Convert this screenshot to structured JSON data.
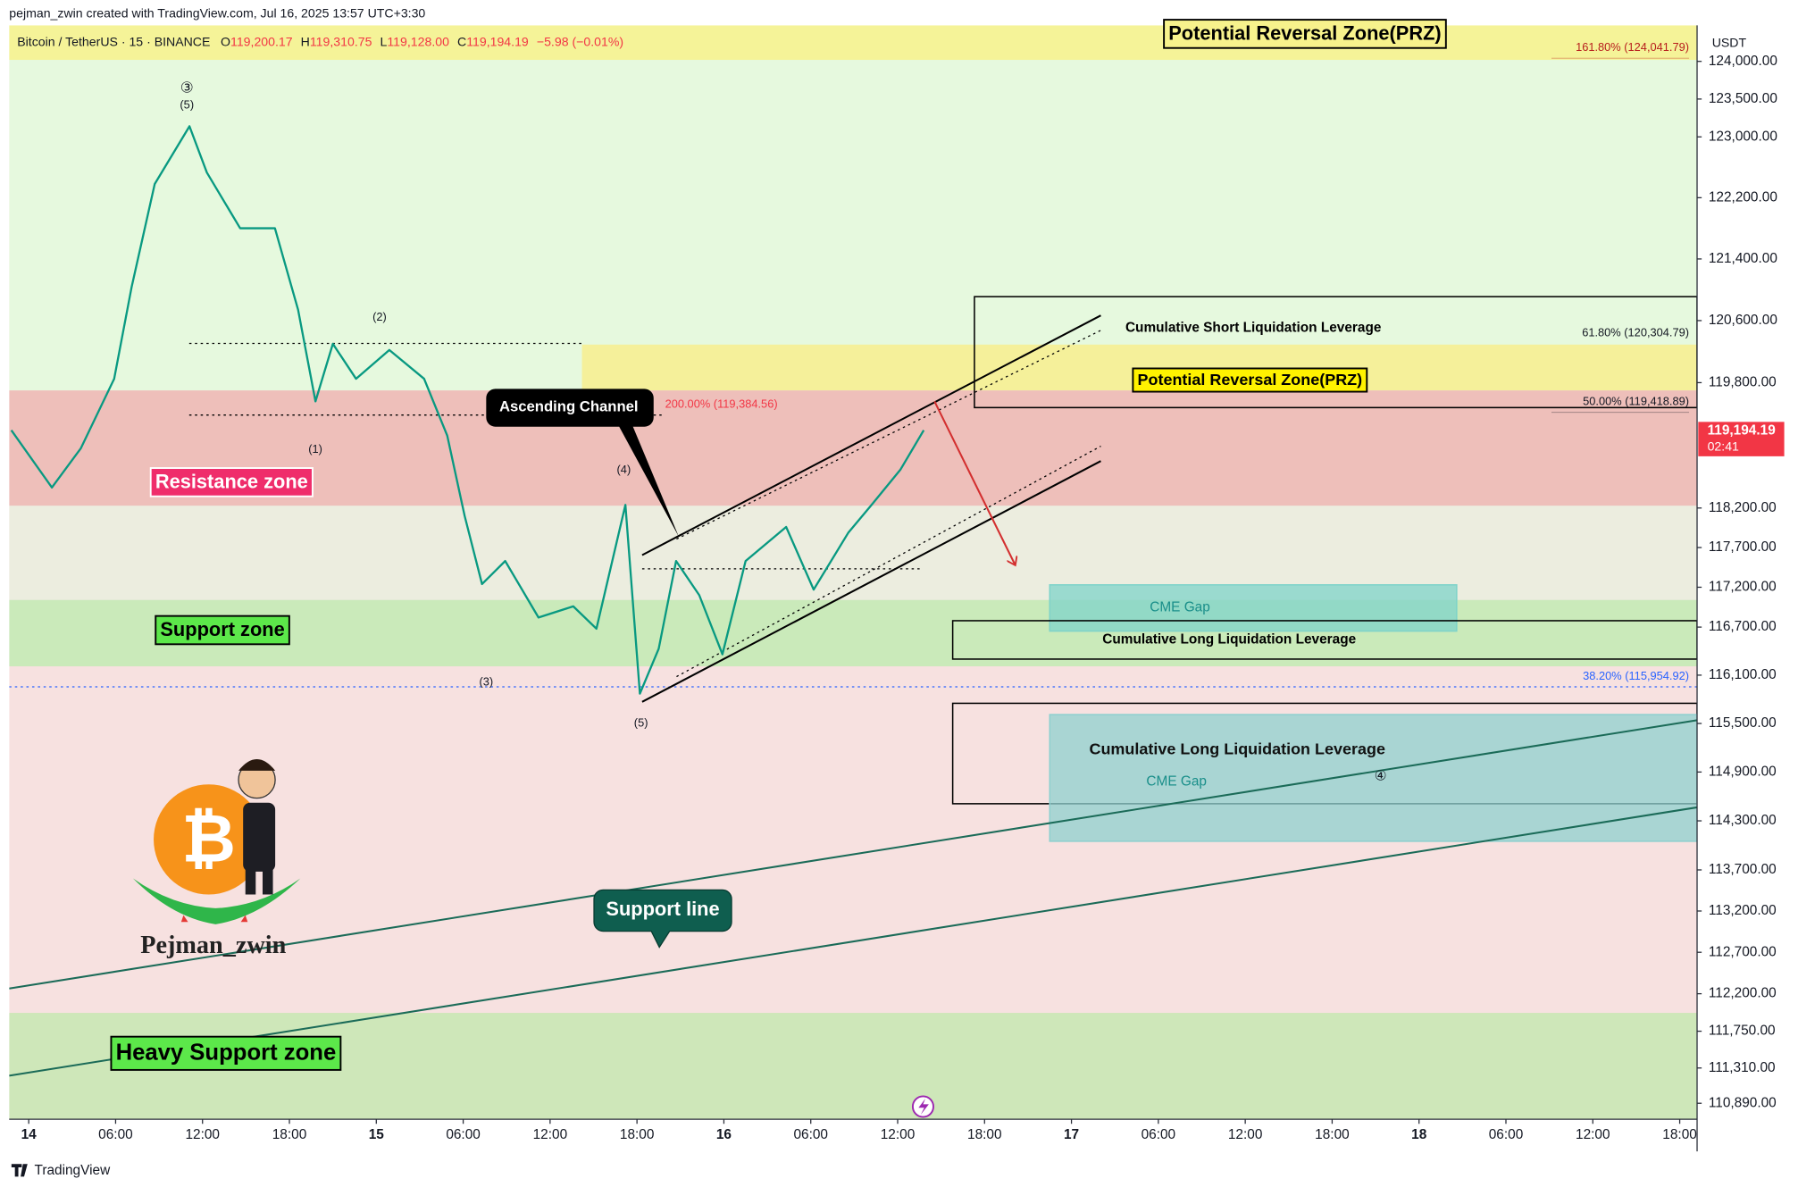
{
  "header": {
    "credit": "pejman_zwin created with TradingView.com, Jul 16, 2025 13:57 UTC+3:30"
  },
  "symbol_bar": {
    "symbol": "Bitcoin / TetherUS · 15 · BINANCE",
    "open_label": "O",
    "open": "119,200.17",
    "high_label": "H",
    "high": "119,310.75",
    "low_label": "L",
    "low": "119,128.00",
    "close_label": "C",
    "close": "119,194.19",
    "change": "−5.98 (−0.01%)"
  },
  "chart_data": {
    "type": "line",
    "x": [
      -1.2,
      1.6,
      3.6,
      5.9,
      7.1,
      8.7,
      11.1,
      12.3,
      14.6,
      17.0,
      18.6,
      19.8,
      21.0,
      22.6,
      24.9,
      27.3,
      28.9,
      30.1,
      31.3,
      32.9,
      35.2,
      37.6,
      39.2,
      41.2,
      42.2,
      43.5,
      44.7,
      46.3,
      47.9,
      49.5,
      52.3,
      54.2,
      56.6,
      58.2,
      60.2,
      61.8
    ],
    "values": [
      119190,
      118460,
      118960,
      119850,
      121030,
      122380,
      123140,
      122530,
      121800,
      121800,
      120740,
      119560,
      120300,
      119850,
      120220,
      119850,
      119120,
      118100,
      117240,
      117530,
      116820,
      116960,
      116680,
      118240,
      115870,
      116430,
      117530,
      117100,
      116360,
      117530,
      117960,
      117170,
      117890,
      118240,
      118690,
      119190
    ],
    "color": "#089981",
    "xlim": [
      -1.35,
      115.2
    ],
    "xticks": [
      {
        "value": 0,
        "label": "14"
      },
      {
        "value": 6,
        "label": "06:00"
      },
      {
        "value": 12,
        "label": "12:00"
      },
      {
        "value": 18,
        "label": "18:00"
      },
      {
        "value": 24,
        "label": "15"
      },
      {
        "value": 30,
        "label": "06:00"
      },
      {
        "value": 36,
        "label": "12:00"
      },
      {
        "value": 42,
        "label": "18:00"
      },
      {
        "value": 48,
        "label": "16"
      },
      {
        "value": 54,
        "label": "06:00"
      },
      {
        "value": 60,
        "label": "12:00"
      },
      {
        "value": 66,
        "label": "18:00"
      },
      {
        "value": 72,
        "label": "17"
      },
      {
        "value": 78,
        "label": "06:00"
      },
      {
        "value": 84,
        "label": "12:00"
      },
      {
        "value": 90,
        "label": "18:00"
      },
      {
        "value": 96,
        "label": "18"
      },
      {
        "value": 102,
        "label": "06:00"
      },
      {
        "value": 108,
        "label": "12:00"
      },
      {
        "value": 114,
        "label": "18:00"
      }
    ],
    "ylim": [
      110700,
      124480
    ],
    "log_y": true,
    "yticks": [
      {
        "value": 124000,
        "label": "124,000.00"
      },
      {
        "value": 123500,
        "label": "123,500.00"
      },
      {
        "value": 123000,
        "label": "123,000.00"
      },
      {
        "value": 122200,
        "label": "122,200.00"
      },
      {
        "value": 121400,
        "label": "121,400.00"
      },
      {
        "value": 120600,
        "label": "120,600.00"
      },
      {
        "value": 119800,
        "label": "119,800.00"
      },
      {
        "value": 118200,
        "label": "118,200.00"
      },
      {
        "value": 117700,
        "label": "117,700.00"
      },
      {
        "value": 117200,
        "label": "117,200.00"
      },
      {
        "value": 116700,
        "label": "116,700.00"
      },
      {
        "value": 116100,
        "label": "116,100.00"
      },
      {
        "value": 115500,
        "label": "115,500.00"
      },
      {
        "value": 114900,
        "label": "114,900.00"
      },
      {
        "value": 114300,
        "label": "114,300.00"
      },
      {
        "value": 113700,
        "label": "113,700.00"
      },
      {
        "value": 113200,
        "label": "113,200.00"
      },
      {
        "value": 112700,
        "label": "112,700.00"
      },
      {
        "value": 112200,
        "label": "112,200.00"
      },
      {
        "value": 111750,
        "label": "111,750.00"
      },
      {
        "value": 111310,
        "label": "111,310.00"
      },
      {
        "value": 110890,
        "label": "110,890.00"
      }
    ],
    "y_unit": "USDT",
    "last_price": {
      "value": 119194.19,
      "label": "119,194.19"
    },
    "countdown": "02:41",
    "zones": [
      {
        "name": "Potential Reversal Zone(PRZ)",
        "y": [
          124020,
          124480
        ],
        "color": "#f7f28c"
      },
      {
        "name": "Potential Reversal Zone(PRZ)",
        "x": [
          38.2,
          115.2
        ],
        "y": [
          119700,
          120290
        ],
        "color": "#f7ef8e"
      },
      {
        "name": "Resistance zone",
        "y": [
          118230,
          119700
        ],
        "color": "#ecb8b3"
      },
      {
        "name": "Support zone",
        "y": [
          116210,
          117040
        ],
        "color": "#c2ebb3"
      },
      {
        "name": "Heavy Support zone",
        "y": [
          110700,
          111970
        ],
        "color": "#c7e7b1"
      }
    ],
    "boxes": [
      {
        "name": "Cumulative Short Liquidation Leverage",
        "x": [
          65.3,
          115.2
        ],
        "y": [
          119480,
          120910
        ]
      },
      {
        "name": "CME Gap",
        "x": [
          70.5,
          98.6
        ],
        "y": [
          116650,
          117230
        ],
        "color": "#7fd3c9"
      },
      {
        "name": "Cumulative Long Liquidation Leverage",
        "x": [
          63.8,
          115.2
        ],
        "y": [
          116300,
          116780
        ]
      },
      {
        "name": "Cumulative Long Liquidation Leverage",
        "x": [
          63.8,
          115.2
        ],
        "y": [
          114510,
          115750
        ]
      },
      {
        "name": "CME Gap",
        "x": [
          70.5,
          115.2
        ],
        "y": [
          114050,
          115610
        ],
        "color": "#8fd0cf"
      }
    ],
    "fib_levels": [
      {
        "value": 124041.79,
        "label": "161.80% (124,041.79)"
      },
      {
        "value": 120304.79,
        "label": "61.80% (120,304.79)"
      },
      {
        "value": 119418.89,
        "label": "50.00% (119,418.89)"
      },
      {
        "value": 115954.92,
        "label": "38.20% (115,954.92)"
      },
      {
        "value": 119384.56,
        "label": "200.00% (119,384.56)"
      }
    ],
    "wave_labels": [
      "③",
      "(5)",
      "(2)",
      "(1)",
      "(3)",
      "(4)",
      "(5)",
      "④"
    ],
    "annotations": {
      "ascending_channel": "Ascending Channel",
      "support_line": "Support line"
    }
  },
  "logo": {
    "symbol": "₿",
    "name": "Pejman_zwin"
  },
  "footer": {
    "brand": "TradingView"
  }
}
